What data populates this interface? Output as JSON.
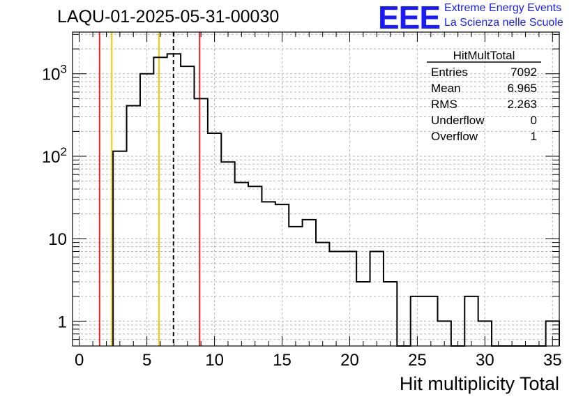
{
  "header": {
    "run_title": "LAQU-01-2025-05-31-00030",
    "logo_text": "EEE",
    "logo_line1": "Extreme Energy Events",
    "logo_line2": "La Scienza nelle Scuole"
  },
  "colors": {
    "histogram": "#000000",
    "red_marker": "#e8211d",
    "yellow_marker": "#f5c800",
    "mean_marker": "#000000",
    "grid": "#b4b4b4",
    "logo": "#1a1aff"
  },
  "chart_data": {
    "type": "histogram",
    "title": "",
    "xlabel": "Hit multiplicity Total",
    "ylabel": "",
    "xlim": [
      -0.5,
      35.5
    ],
    "ylim": [
      0.5,
      3200
    ],
    "y_scale": "log",
    "grid": true,
    "bin_width": 1,
    "bins": [
      {
        "x": 3,
        "count": 115
      },
      {
        "x": 4,
        "count": 410
      },
      {
        "x": 5,
        "count": 1000
      },
      {
        "x": 6,
        "count": 1580
      },
      {
        "x": 7,
        "count": 1740
      },
      {
        "x": 8,
        "count": 1230
      },
      {
        "x": 9,
        "count": 500
      },
      {
        "x": 10,
        "count": 190
      },
      {
        "x": 11,
        "count": 85
      },
      {
        "x": 12,
        "count": 48
      },
      {
        "x": 13,
        "count": 43
      },
      {
        "x": 14,
        "count": 28
      },
      {
        "x": 15,
        "count": 26
      },
      {
        "x": 16,
        "count": 14
      },
      {
        "x": 17,
        "count": 17
      },
      {
        "x": 18,
        "count": 9
      },
      {
        "x": 19,
        "count": 7
      },
      {
        "x": 20,
        "count": 7
      },
      {
        "x": 21,
        "count": 3
      },
      {
        "x": 22,
        "count": 7
      },
      {
        "x": 23,
        "count": 3
      },
      {
        "x": 24,
        "count": 0
      },
      {
        "x": 25,
        "count": 2
      },
      {
        "x": 26,
        "count": 2
      },
      {
        "x": 27,
        "count": 1
      },
      {
        "x": 28,
        "count": 0
      },
      {
        "x": 29,
        "count": 2
      },
      {
        "x": 30,
        "count": 1
      },
      {
        "x": 31,
        "count": 0
      },
      {
        "x": 32,
        "count": 0
      },
      {
        "x": 33,
        "count": 0
      },
      {
        "x": 34,
        "count": 0
      },
      {
        "x": 35,
        "count": 1
      }
    ],
    "x_ticks": [
      0,
      5,
      10,
      15,
      20,
      25,
      30,
      35
    ],
    "x_tick_labels": [
      "0",
      "5",
      "10",
      "15",
      "20",
      "25",
      "30",
      "35"
    ],
    "y_ticks": [
      1,
      10,
      100,
      1000
    ],
    "vertical_markers": [
      {
        "x": 1.5,
        "color": "red",
        "style": "solid"
      },
      {
        "x": 2.4,
        "color": "yellow",
        "style": "solid"
      },
      {
        "x": 5.9,
        "color": "yellow",
        "style": "solid"
      },
      {
        "x": 6.965,
        "color": "black",
        "style": "dashed"
      },
      {
        "x": 8.9,
        "color": "red",
        "style": "solid"
      }
    ],
    "stats_box": {
      "title": "HitMultTotal",
      "position": "top-right",
      "rows": [
        {
          "label": "Entries",
          "value": "7092"
        },
        {
          "label": "Mean",
          "value": "6.965"
        },
        {
          "label": "RMS",
          "value": "2.263"
        },
        {
          "label": "Underflow",
          "value": "0"
        },
        {
          "label": "Overflow",
          "value": "1"
        }
      ]
    }
  }
}
